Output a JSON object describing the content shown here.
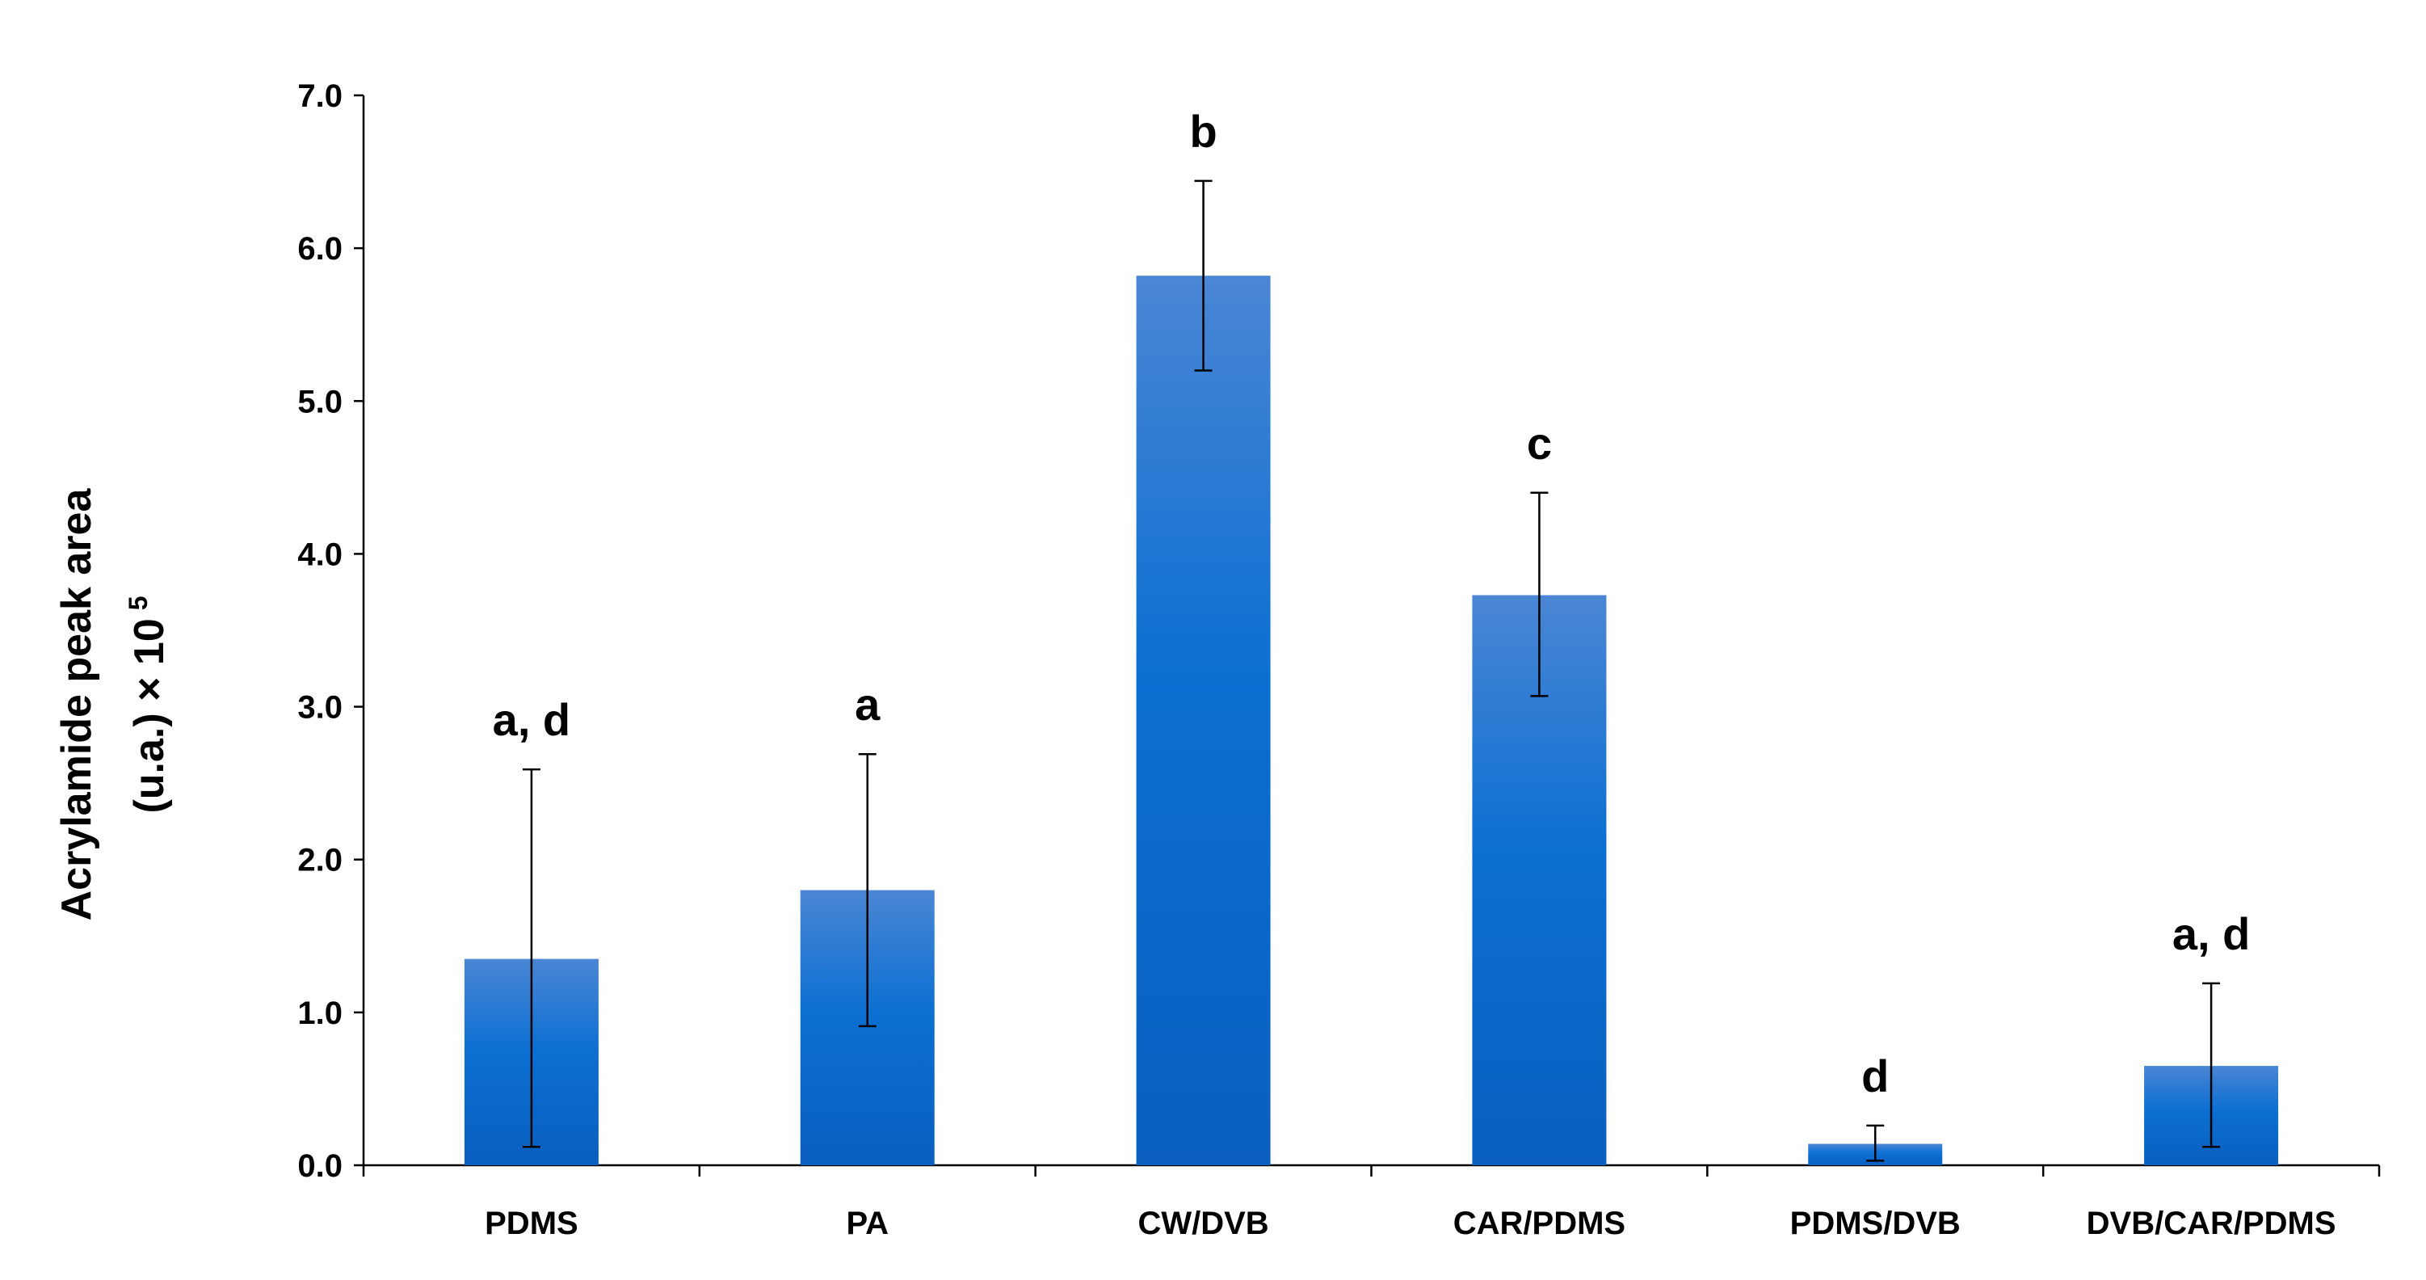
{
  "chart_data": {
    "type": "bar",
    "title": "",
    "xlabel": "",
    "ylabel_line1": "Acrylamide peak area",
    "ylabel_line2": "(u.a.)  × 10",
    "ylabel_exponent": "5",
    "ylim": [
      0,
      7
    ],
    "yticks": [
      "0.0",
      "1.0",
      "2.0",
      "3.0",
      "4.0",
      "5.0",
      "6.0",
      "7.0"
    ],
    "categories": [
      "PDMS",
      "PA",
      "CW/DVB",
      "CAR/PDMS",
      "PDMS/DVB",
      "DVB/CAR/PDMS"
    ],
    "values": [
      1.35,
      1.8,
      5.82,
      3.73,
      0.14,
      0.65
    ],
    "error_low": [
      0.12,
      0.91,
      5.2,
      3.07,
      0.03,
      0.12
    ],
    "error_high": [
      2.59,
      2.69,
      6.44,
      4.4,
      0.26,
      1.19
    ],
    "significance": [
      "a, d",
      "a",
      "b",
      "c",
      "d",
      "a, d"
    ],
    "bar_color_top": "#4a86d4",
    "bar_color_mid": "#0b6fd2",
    "bar_color_bottom": "#0a5fbf",
    "grid": false,
    "legend": "none"
  }
}
